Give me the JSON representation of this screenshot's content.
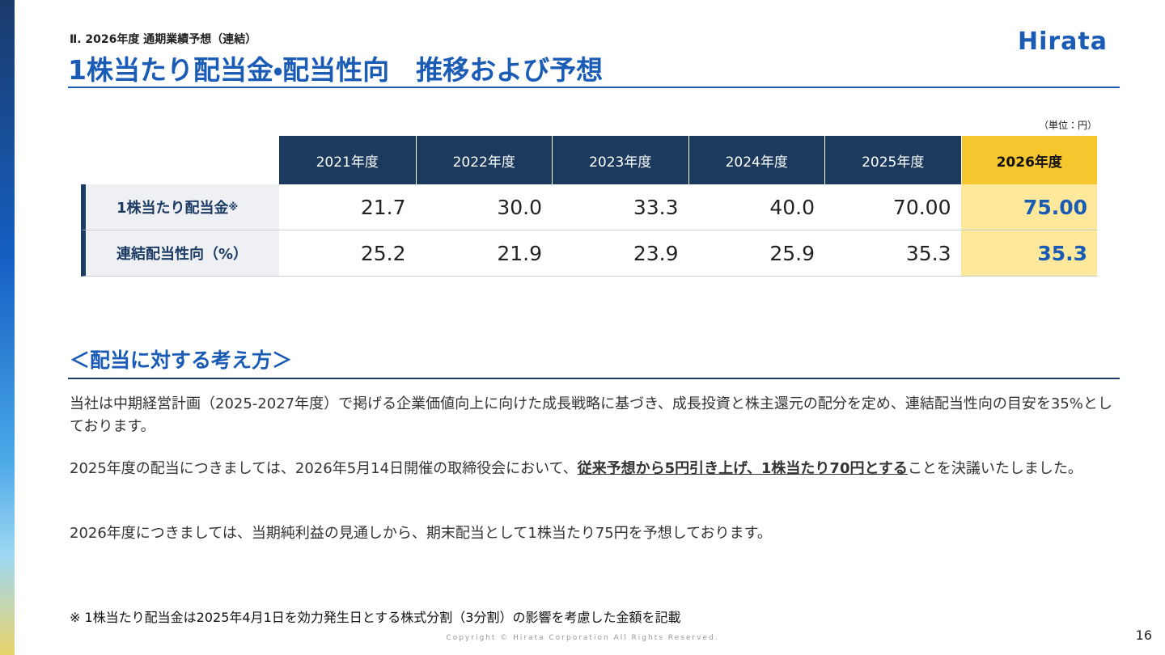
{
  "header": {
    "section": "Ⅱ. 2026年度 通期業績予想（連結）",
    "title": "1株当たり配当金・配当性向　推移および予想",
    "logo": "Hirata"
  },
  "table": {
    "unit": "（単位：円）",
    "columns": [
      "2021年度",
      "2022年度",
      "2023年度",
      "2024年度",
      "2025年度",
      "2026年度"
    ],
    "rows": [
      {
        "label": "1株当たり配当金",
        "note_mark": "※",
        "values": [
          "21.7",
          "30.0",
          "33.3",
          "40.0",
          "70.00",
          "75.00"
        ]
      },
      {
        "label": "連結配当性向（%）",
        "values": [
          "25.2",
          "21.9",
          "23.9",
          "25.9",
          "35.3",
          "35.3"
        ]
      }
    ]
  },
  "policy": {
    "heading": "＜配当に対する考え方＞",
    "paragraphs": [
      {
        "text": "当社は中期経営計画（2025-2027年度）で掲げる企業価値向上に向けた成長戦略に基づき、成長投資と株主還元の配分を定め、連結配当性向の目安を35%としております。"
      },
      {
        "before": "2025年度の配当につきましては、2026年5月14日開催の取締役会において、",
        "emphasis": "従来予想から5円引き上げ、1株当たり70円とする",
        "after": "ことを決議いたしました。"
      },
      {
        "text": "2026年度につきましては、当期純利益の見通しから、期末配当として1株当たり75円を予想しております。"
      }
    ]
  },
  "footnote": "※ 1株当たり配当金は2025年4月1日を効力発生日とする株式分割（3分割）の影響を考慮した金額を記載",
  "copyright": "Copyright © Hirata Corporation All Rights Reserved.",
  "page_number": "16"
}
